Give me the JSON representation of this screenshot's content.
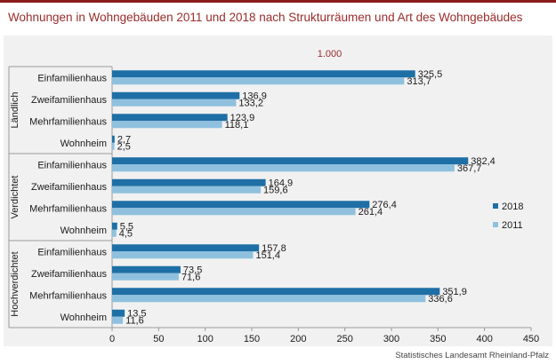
{
  "header": {
    "title": "Wohnungen in Wohngebäuden 2011 und 2018 nach Strukturräumen und Art des Wohngebäudes",
    "unit": "1.000",
    "source": "Statistisches Landesamt Rheinland-Pfalz"
  },
  "chart_data": {
    "type": "bar",
    "orientation": "horizontal",
    "xlim": [
      0,
      450
    ],
    "xticks": [
      "0",
      "50",
      "100",
      "150",
      "200",
      "250",
      "300",
      "350",
      "400",
      "450"
    ],
    "legend_position": "right",
    "colors": {
      "2018": "#1e6fa5",
      "2011": "#8fc1df"
    },
    "groups": [
      {
        "name": "Ländlich",
        "categories": [
          "Einfamilienhaus",
          "Zweifamilienhaus",
          "Mehrfamilienhaus",
          "Wohnheim"
        ],
        "series": [
          {
            "name": "2018",
            "values": [
              325.5,
              136.9,
              123.9,
              2.7
            ],
            "labels": [
              "325,5",
              "136,9",
              "123,9",
              "2,7"
            ]
          },
          {
            "name": "2011",
            "values": [
              313.7,
              133.2,
              118.1,
              2.5
            ],
            "labels": [
              "313,7",
              "133,2",
              "118,1",
              "2,5"
            ]
          }
        ]
      },
      {
        "name": "Verdichtet",
        "categories": [
          "Einfamilienhaus",
          "Zweifamilienhaus",
          "Mehrfamilienhaus",
          "Wohnheim"
        ],
        "series": [
          {
            "name": "2018",
            "values": [
              382.4,
              164.9,
              276.4,
              5.5
            ],
            "labels": [
              "382,4",
              "164,9",
              "276,4",
              "5,5"
            ]
          },
          {
            "name": "2011",
            "values": [
              367.7,
              159.6,
              261.4,
              4.5
            ],
            "labels": [
              "367,7",
              "159,6",
              "261,4",
              "4,5"
            ]
          }
        ]
      },
      {
        "name": "Hochverdichtet",
        "categories": [
          "Einfamilienhaus",
          "Zweifamilienhaus",
          "Mehrfamilienhaus",
          "Wohnheim"
        ],
        "series": [
          {
            "name": "2018",
            "values": [
              157.8,
              73.5,
              351.9,
              13.5
            ],
            "labels": [
              "157,8",
              "73,5",
              "351,9",
              "13,5"
            ]
          },
          {
            "name": "2011",
            "values": [
              151.4,
              71.6,
              336.6,
              11.6
            ],
            "labels": [
              "151,4",
              "71,6",
              "336,6",
              "11,6"
            ]
          }
        ]
      }
    ]
  }
}
